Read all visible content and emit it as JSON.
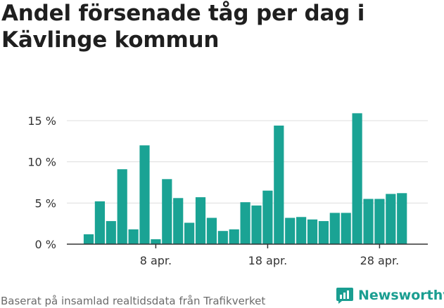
{
  "title": "Andel försenade tåg per dag i Kävlinge kommun",
  "source": "Baserat på insamlad realtidsdata från Trafikverket",
  "brand": "Newsworthy",
  "colors": {
    "bar": "#1aa394",
    "brand": "#1a9e91",
    "grid": "#dddddd",
    "axis": "#333333"
  },
  "chart_data": {
    "type": "bar",
    "title": "Andel försenade tåg per dag i Kävlinge kommun",
    "xlabel": "",
    "ylabel": "",
    "ylim": [
      0,
      16
    ],
    "grid": true,
    "yticks": [
      {
        "value": 0,
        "label": "0 %"
      },
      {
        "value": 5,
        "label": "5 %"
      },
      {
        "value": 10,
        "label": "10 %"
      },
      {
        "value": 15,
        "label": "15 %"
      }
    ],
    "xticks": [
      {
        "index": 6,
        "label": "8 apr."
      },
      {
        "index": 16,
        "label": "18 apr."
      },
      {
        "index": 26,
        "label": "28 apr."
      }
    ],
    "categories": [
      "2 apr.",
      "3 apr.",
      "4 apr.",
      "5 apr.",
      "6 apr.",
      "7 apr.",
      "8 apr.",
      "9 apr.",
      "10 apr.",
      "11 apr.",
      "12 apr.",
      "13 apr.",
      "14 apr.",
      "15 apr.",
      "16 apr.",
      "17 apr.",
      "18 apr.",
      "19 apr.",
      "20 apr.",
      "21 apr.",
      "22 apr.",
      "23 apr.",
      "24 apr.",
      "25 apr.",
      "26 apr.",
      "27 apr.",
      "28 apr.",
      "29 apr.",
      "30 apr."
    ],
    "values": [
      1.2,
      5.2,
      2.8,
      9.1,
      1.8,
      12.0,
      0.6,
      7.9,
      5.6,
      2.6,
      5.7,
      3.2,
      1.6,
      1.8,
      5.1,
      4.7,
      6.5,
      14.4,
      3.2,
      3.3,
      3.0,
      2.8,
      3.8,
      3.8,
      15.9,
      5.5,
      5.5,
      6.1,
      6.2
    ]
  }
}
